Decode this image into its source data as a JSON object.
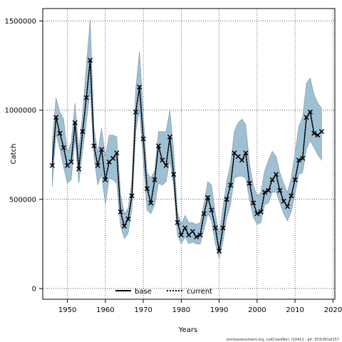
{
  "chart_data": {
    "type": "line",
    "title": "",
    "xlabel": "Years",
    "ylabel": "Catch",
    "xlim": [
      1943.5,
      2020.5
    ],
    "ylim": [
      -60000,
      1570000
    ],
    "x_ticks": [
      1950,
      1960,
      1970,
      1980,
      1990,
      2000,
      2010,
      2020
    ],
    "y_ticks": [
      0,
      500000,
      1000000,
      1500000
    ],
    "y_tick_labels": [
      "0",
      "500000",
      "1000000",
      "1500000"
    ],
    "grid": true,
    "legend_position": "bottom-center",
    "colors": {
      "band_fill": "#9fbfd3",
      "band_stroke": "#7a96aa",
      "base": "#000000",
      "current": "#000000"
    },
    "series": [
      {
        "name": "base",
        "style": "solid",
        "x": [
          1946,
          1947,
          1948,
          1949,
          1950,
          1951,
          1952,
          1953,
          1954,
          1955,
          1956,
          1957,
          1958,
          1959,
          1960,
          1961,
          1962,
          1963,
          1964,
          1965,
          1966,
          1967,
          1968,
          1969,
          1970,
          1971,
          1972,
          1973,
          1974,
          1975,
          1976,
          1977,
          1978,
          1979,
          1980,
          1981,
          1982,
          1983,
          1984,
          1985,
          1986,
          1987,
          1988,
          1989,
          1990,
          1991,
          1992,
          1993,
          1994,
          1995,
          1996,
          1997,
          1998,
          1999,
          2000,
          2001,
          2002,
          2003,
          2004,
          2005,
          2006,
          2007,
          2008,
          2009,
          2010,
          2011,
          2012,
          2013,
          2014,
          2015,
          2016,
          2017
        ],
        "values": [
          690000,
          960000,
          870000,
          790000,
          690000,
          710000,
          930000,
          670000,
          880000,
          1070000,
          1280000,
          800000,
          690000,
          780000,
          610000,
          710000,
          730000,
          760000,
          430000,
          350000,
          390000,
          520000,
          990000,
          1130000,
          840000,
          560000,
          480000,
          610000,
          800000,
          720000,
          690000,
          850000,
          640000,
          370000,
          300000,
          340000,
          300000,
          320000,
          290000,
          300000,
          420000,
          510000,
          440000,
          340000,
          210000,
          340000,
          500000,
          580000,
          760000,
          740000,
          720000,
          760000,
          590000,
          480000,
          420000,
          430000,
          540000,
          550000,
          610000,
          640000,
          550000,
          490000,
          460000,
          520000,
          610000,
          720000,
          730000,
          960000,
          990000,
          870000,
          860000,
          880000
        ]
      },
      {
        "name": "current",
        "style": "dotted",
        "x": [
          1946,
          1947,
          1948,
          1949,
          1950,
          1951,
          1952,
          1953,
          1954,
          1955,
          1956,
          1957,
          1958,
          1959,
          1960,
          1961,
          1962,
          1963,
          1964,
          1965,
          1966,
          1967,
          1968,
          1969,
          1970,
          1971,
          1972,
          1973,
          1974,
          1975,
          1976,
          1977,
          1978,
          1979,
          1980,
          1981,
          1982,
          1983,
          1984,
          1985,
          1986,
          1987,
          1988,
          1989,
          1990,
          1991,
          1992,
          1993,
          1994,
          1995,
          1996,
          1997,
          1998,
          1999,
          2000,
          2001,
          2002,
          2003,
          2004,
          2005,
          2006,
          2007,
          2008,
          2009,
          2010,
          2011,
          2012,
          2013,
          2014,
          2015,
          2016,
          2017
        ],
        "values": [
          690000,
          960000,
          870000,
          790000,
          690000,
          710000,
          930000,
          670000,
          880000,
          1070000,
          1280000,
          800000,
          690000,
          780000,
          610000,
          710000,
          730000,
          760000,
          430000,
          350000,
          390000,
          520000,
          990000,
          1130000,
          840000,
          560000,
          480000,
          610000,
          800000,
          720000,
          690000,
          850000,
          640000,
          370000,
          300000,
          340000,
          300000,
          320000,
          290000,
          300000,
          420000,
          510000,
          440000,
          340000,
          210000,
          340000,
          500000,
          580000,
          760000,
          740000,
          720000,
          760000,
          590000,
          480000,
          420000,
          430000,
          540000,
          550000,
          610000,
          640000,
          550000,
          490000,
          460000,
          520000,
          610000,
          720000,
          730000,
          960000,
          990000,
          870000,
          860000,
          880000
        ]
      }
    ],
    "band": {
      "x": [
        1946,
        1947,
        1948,
        1949,
        1950,
        1951,
        1952,
        1953,
        1954,
        1955,
        1956,
        1957,
        1958,
        1959,
        1960,
        1961,
        1962,
        1963,
        1964,
        1965,
        1966,
        1967,
        1968,
        1969,
        1970,
        1971,
        1972,
        1973,
        1974,
        1975,
        1976,
        1977,
        1978,
        1979,
        1980,
        1981,
        1982,
        1983,
        1984,
        1985,
        1986,
        1987,
        1988,
        1989,
        1990,
        1991,
        1992,
        1993,
        1994,
        1995,
        1996,
        1997,
        1998,
        1999,
        2000,
        2001,
        2002,
        2003,
        2004,
        2005,
        2006,
        2007,
        2008,
        2009,
        2010,
        2011,
        2012,
        2013,
        2014,
        2015,
        2016,
        2017
      ],
      "upper": [
        820000,
        1070000,
        990000,
        950000,
        760000,
        820000,
        1040000,
        780000,
        980000,
        1250000,
        1510000,
        900000,
        760000,
        900000,
        740000,
        860000,
        860000,
        850000,
        530000,
        420000,
        450000,
        600000,
        1120000,
        1330000,
        970000,
        650000,
        620000,
        660000,
        880000,
        880000,
        880000,
        1000000,
        780000,
        430000,
        360000,
        410000,
        370000,
        370000,
        360000,
        370000,
        480000,
        600000,
        580000,
        420000,
        300000,
        460000,
        600000,
        700000,
        880000,
        930000,
        950000,
        920000,
        700000,
        580000,
        520000,
        540000,
        660000,
        720000,
        770000,
        740000,
        650000,
        590000,
        540000,
        620000,
        760000,
        910000,
        960000,
        1150000,
        1180000,
        1090000,
        1040000,
        1010000
      ],
      "lower": [
        570000,
        870000,
        780000,
        680000,
        590000,
        610000,
        840000,
        590000,
        770000,
        930000,
        1110000,
        740000,
        580000,
        640000,
        470000,
        620000,
        610000,
        590000,
        350000,
        280000,
        310000,
        440000,
        880000,
        1000000,
        720000,
        440000,
        420000,
        470000,
        590000,
        580000,
        600000,
        720000,
        580000,
        300000,
        250000,
        290000,
        250000,
        260000,
        250000,
        250000,
        330000,
        420000,
        380000,
        250000,
        170000,
        260000,
        400000,
        470000,
        620000,
        630000,
        630000,
        620000,
        500000,
        400000,
        360000,
        370000,
        470000,
        480000,
        540000,
        540000,
        480000,
        420000,
        380000,
        430000,
        530000,
        640000,
        650000,
        780000,
        830000,
        790000,
        750000,
        720000
      ]
    }
  },
  "legend": {
    "base_label": "base",
    "current_label": "current"
  },
  "footer": {
    "text": "stockassessment.org, codCoastNor, r10411 , git: 503cf91af157"
  }
}
